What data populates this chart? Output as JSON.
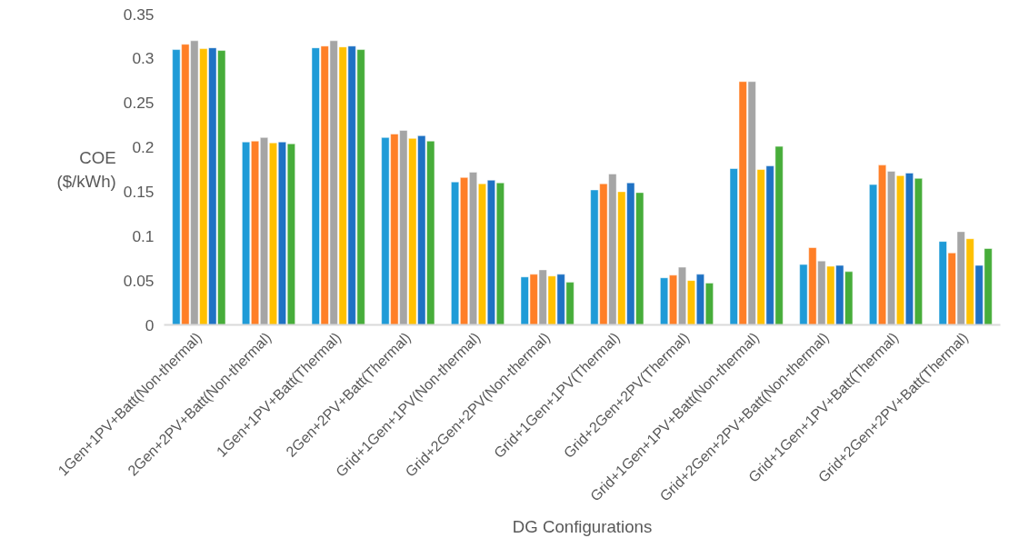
{
  "chart_data": {
    "type": "bar",
    "xlabel": "DG Configurations",
    "ylabel": "COE\n($/kWh)",
    "categories": [
      "1Gen+1PV+Batt(Non-thermal)",
      "2Gen+2PV+Batt(Non-thermal)",
      "1Gen+1PV+Batt(Thermal)",
      "2Gen+2PV+Batt(Thermal)",
      "Grid+1Gen+1PV(Non-thermal)",
      "Grid+2Gen+2PV(Non-thermal)",
      "Grid+1Gen+1PV(Thermal)",
      "Grid+2Gen+2PV(Thermal)",
      "Grid+1Gen+1PV+Batt(Non-thermal)",
      "Grid+2Gen+2PV+Batt(Non-thermal)",
      "Grid+1Gen+1PV+Batt(Thermal)",
      "Grid+2Gen+2PV+Batt(Thermal)"
    ],
    "series": [
      {
        "color": "#1f9bd7",
        "values": [
          0.31,
          0.206,
          0.312,
          0.211,
          0.161,
          0.054,
          0.152,
          0.053,
          0.176,
          0.068,
          0.158,
          0.094
        ]
      },
      {
        "color": "#ff7f27",
        "values": [
          0.316,
          0.207,
          0.314,
          0.215,
          0.166,
          0.057,
          0.159,
          0.056,
          0.274,
          0.087,
          0.18,
          0.081
        ]
      },
      {
        "color": "#a5a5a5",
        "values": [
          0.32,
          0.211,
          0.32,
          0.219,
          0.172,
          0.062,
          0.17,
          0.065,
          0.274,
          0.072,
          0.173,
          0.105
        ]
      },
      {
        "color": "#ffc000",
        "values": [
          0.311,
          0.205,
          0.313,
          0.21,
          0.159,
          0.055,
          0.15,
          0.05,
          0.175,
          0.066,
          0.168,
          0.097
        ]
      },
      {
        "color": "#1f72c4",
        "values": [
          0.312,
          0.206,
          0.314,
          0.213,
          0.163,
          0.057,
          0.16,
          0.057,
          0.179,
          0.067,
          0.171,
          0.067
        ]
      },
      {
        "color": "#47ad3a",
        "values": [
          0.309,
          0.204,
          0.31,
          0.207,
          0.16,
          0.048,
          0.149,
          0.047,
          0.201,
          0.06,
          0.165,
          0.086
        ]
      }
    ],
    "ylim": [
      0,
      0.35
    ],
    "yticks": [
      0,
      0.05,
      {
        "value": 0.1,
        "label": "0.1"
      },
      0.15,
      {
        "value": 0.2,
        "label": "0.2"
      },
      0.25,
      {
        "value": 0.3,
        "label": "0.3"
      },
      0.35
    ],
    "grid": false
  }
}
